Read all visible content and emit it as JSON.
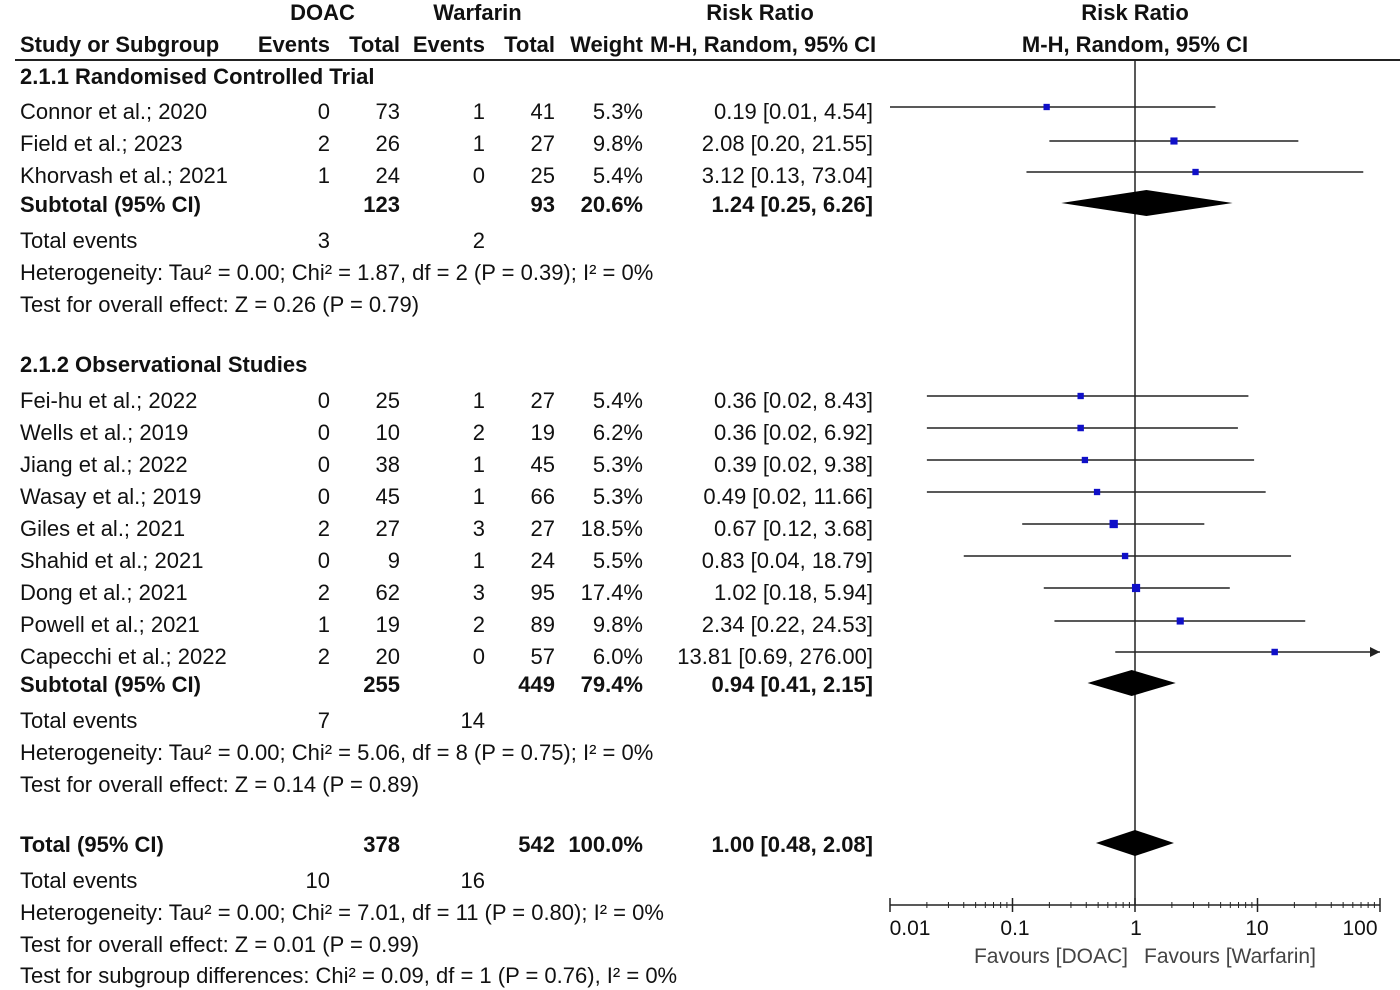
{
  "header": {
    "group1": "DOAC",
    "group2": "Warfarin",
    "rr_left": "Risk Ratio",
    "rr_right": "Risk Ratio",
    "col_study": "Study or Subgroup",
    "col_events1": "Events",
    "col_total1": "Total",
    "col_events2": "Events",
    "col_total2": "Total",
    "col_weight": "Weight",
    "col_method_left": "M-H, Random, 95% CI",
    "col_method_right": "M-H, Random, 95% CI"
  },
  "subgroups": [
    {
      "title": "2.1.1 Randomised Controlled Trial",
      "studies": [
        {
          "name": "Connor et al.; 2020",
          "e1": "0",
          "t1": "73",
          "e2": "1",
          "t2": "41",
          "weight": "5.3%",
          "ci_text": "0.19 [0.01, 4.54]"
        },
        {
          "name": "Field et al.; 2023",
          "e1": "2",
          "t1": "26",
          "e2": "1",
          "t2": "27",
          "weight": "9.8%",
          "ci_text": "2.08 [0.20, 21.55]"
        },
        {
          "name": "Khorvash et al.; 2021",
          "e1": "1",
          "t1": "24",
          "e2": "0",
          "t2": "25",
          "weight": "5.4%",
          "ci_text": "3.12 [0.13, 73.04]"
        }
      ],
      "subtotal": {
        "label": "Subtotal (95% CI)",
        "t1": "123",
        "t2": "93",
        "weight": "20.6%",
        "ci_text": "1.24 [0.25, 6.26]"
      },
      "total_events": {
        "label": "Total events",
        "e1": "3",
        "e2": "2"
      },
      "heterogeneity": "Heterogeneity: Tau² = 0.00; Chi² = 1.87, df = 2 (P = 0.39); I² = 0%",
      "overall_effect": "Test for overall effect: Z = 0.26 (P = 0.79)"
    },
    {
      "title": "2.1.2 Observational Studies",
      "studies": [
        {
          "name": "Fei-hu et al.; 2022",
          "e1": "0",
          "t1": "25",
          "e2": "1",
          "t2": "27",
          "weight": "5.4%",
          "ci_text": "0.36 [0.02, 8.43]"
        },
        {
          "name": "Wells et al.; 2019",
          "e1": "0",
          "t1": "10",
          "e2": "2",
          "t2": "19",
          "weight": "6.2%",
          "ci_text": "0.36 [0.02, 6.92]"
        },
        {
          "name": "Jiang et al.;  2022",
          "e1": "0",
          "t1": "38",
          "e2": "1",
          "t2": "45",
          "weight": "5.3%",
          "ci_text": "0.39 [0.02, 9.38]"
        },
        {
          "name": "Wasay et al.; 2019",
          "e1": "0",
          "t1": "45",
          "e2": "1",
          "t2": "66",
          "weight": "5.3%",
          "ci_text": "0.49 [0.02, 11.66]"
        },
        {
          "name": "Giles et al.; 2021",
          "e1": "2",
          "t1": "27",
          "e2": "3",
          "t2": "27",
          "weight": "18.5%",
          "ci_text": "0.67 [0.12, 3.68]"
        },
        {
          "name": "Shahid et al.; 2021",
          "e1": "0",
          "t1": "9",
          "e2": "1",
          "t2": "24",
          "weight": "5.5%",
          "ci_text": "0.83 [0.04, 18.79]"
        },
        {
          "name": "Dong et al.; 2021",
          "e1": "2",
          "t1": "62",
          "e2": "3",
          "t2": "95",
          "weight": "17.4%",
          "ci_text": "1.02 [0.18, 5.94]"
        },
        {
          "name": "Powell et al.; 2021",
          "e1": "1",
          "t1": "19",
          "e2": "2",
          "t2": "89",
          "weight": "9.8%",
          "ci_text": "2.34 [0.22, 24.53]"
        },
        {
          "name": "Capecchi et al.; 2022",
          "e1": "2",
          "t1": "20",
          "e2": "0",
          "t2": "57",
          "weight": "6.0%",
          "ci_text": "13.81 [0.69, 276.00]"
        }
      ],
      "subtotal": {
        "label": "Subtotal (95% CI)",
        "t1": "255",
        "t2": "449",
        "weight": "79.4%",
        "ci_text": "0.94 [0.41, 2.15]"
      },
      "total_events": {
        "label": "Total events",
        "e1": "7",
        "e2": "14"
      },
      "heterogeneity": "Heterogeneity: Tau² = 0.00; Chi² = 5.06, df = 8 (P = 0.75); I² = 0%",
      "overall_effect": "Test for overall effect: Z = 0.14 (P = 0.89)"
    }
  ],
  "overall": {
    "label": "Total (95% CI)",
    "t1": "378",
    "t2": "542",
    "weight": "100.0%",
    "ci_text": "1.00 [0.48, 2.08]",
    "total_events": {
      "label": "Total events",
      "e1": "10",
      "e2": "16"
    },
    "heterogeneity": "Heterogeneity: Tau² = 0.00; Chi² = 7.01, df = 11 (P = 0.80); I² = 0%",
    "overall_effect": "Test for overall effect: Z = 0.01 (P = 0.99)",
    "subgroup_diff": "Test for subgroup differences: Chi² = 0.09, df = 1 (P = 0.76), I² = 0%"
  },
  "axis": {
    "ticks": [
      "0.01",
      "0.1",
      "1",
      "10",
      "100"
    ],
    "favours_left": "Favours [DOAC]",
    "favours_right": "Favours [Warfarin]"
  },
  "colors": {
    "marker": "#1010c8",
    "diamond": "#000000",
    "line": "#222222"
  },
  "chart_data": {
    "type": "forest",
    "scale": "log",
    "xlim": [
      0.01,
      100
    ],
    "reference_line": 1,
    "studies": [
      {
        "name": "Connor et al.; 2020",
        "rr": 0.19,
        "lo": 0.01,
        "hi": 4.54,
        "weight": 5.3
      },
      {
        "name": "Field et al.; 2023",
        "rr": 2.08,
        "lo": 0.2,
        "hi": 21.55,
        "weight": 9.8
      },
      {
        "name": "Khorvash et al.; 2021",
        "rr": 3.12,
        "lo": 0.13,
        "hi": 73.04,
        "weight": 5.4
      },
      {
        "name": "Fei-hu et al.; 2022",
        "rr": 0.36,
        "lo": 0.02,
        "hi": 8.43,
        "weight": 5.4
      },
      {
        "name": "Wells et al.; 2019",
        "rr": 0.36,
        "lo": 0.02,
        "hi": 6.92,
        "weight": 6.2
      },
      {
        "name": "Jiang et al.; 2022",
        "rr": 0.39,
        "lo": 0.02,
        "hi": 9.38,
        "weight": 5.3
      },
      {
        "name": "Wasay et al.; 2019",
        "rr": 0.49,
        "lo": 0.02,
        "hi": 11.66,
        "weight": 5.3
      },
      {
        "name": "Giles et al.; 2021",
        "rr": 0.67,
        "lo": 0.12,
        "hi": 3.68,
        "weight": 18.5
      },
      {
        "name": "Shahid et al.; 2021",
        "rr": 0.83,
        "lo": 0.04,
        "hi": 18.79,
        "weight": 5.5
      },
      {
        "name": "Dong et al.; 2021",
        "rr": 1.02,
        "lo": 0.18,
        "hi": 5.94,
        "weight": 17.4
      },
      {
        "name": "Powell et al.; 2021",
        "rr": 2.34,
        "lo": 0.22,
        "hi": 24.53,
        "weight": 9.8
      },
      {
        "name": "Capecchi et al.; 2022",
        "rr": 13.81,
        "lo": 0.69,
        "hi": 276.0,
        "weight": 6.0
      }
    ],
    "pooled": [
      {
        "name": "Subtotal (95% CI) 2.1.1",
        "rr": 1.24,
        "lo": 0.25,
        "hi": 6.26
      },
      {
        "name": "Subtotal (95% CI) 2.1.2",
        "rr": 0.94,
        "lo": 0.41,
        "hi": 2.15
      },
      {
        "name": "Total (95% CI)",
        "rr": 1.0,
        "lo": 0.48,
        "hi": 2.08
      }
    ]
  }
}
